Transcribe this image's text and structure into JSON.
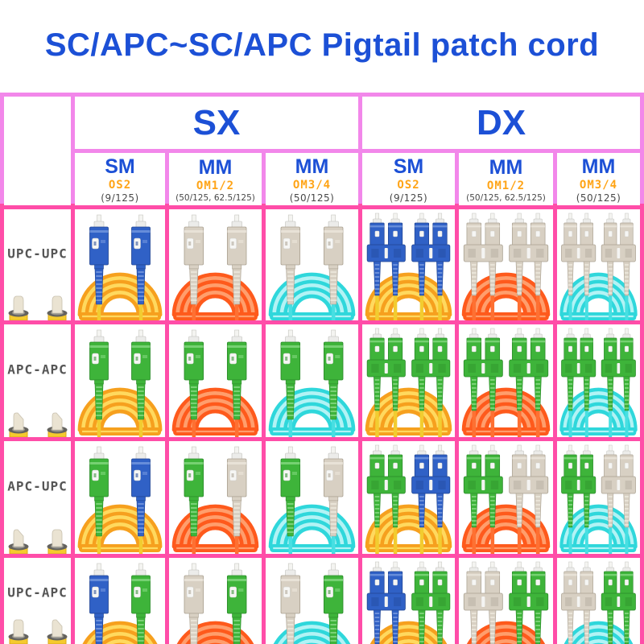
{
  "title": "SC/APC~SC/APC Pigtail patch cord",
  "table": {
    "groups": [
      {
        "label": "SX"
      },
      {
        "label": "DX"
      }
    ],
    "subcolumns": [
      {
        "group": "SX",
        "mode": "SM",
        "grade": "OS2",
        "spec": "(9/125)"
      },
      {
        "group": "SX",
        "mode": "MM",
        "grade": "OM1/2",
        "spec": "(50/125、62.5/125)"
      },
      {
        "group": "SX",
        "mode": "MM",
        "grade": "OM3/4",
        "spec": "(50/125)"
      },
      {
        "group": "DX",
        "mode": "SM",
        "grade": "OS2",
        "spec": "(9/125)"
      },
      {
        "group": "DX",
        "mode": "MM",
        "grade": "OM1/2",
        "spec": "(50/125、62.5/125)"
      },
      {
        "group": "DX",
        "mode": "MM",
        "grade": "OM3/4",
        "spec": "(50/125)"
      }
    ],
    "rows": [
      {
        "label": "UPC-UPC",
        "ferrule_tips": [
          "straight",
          "straight"
        ],
        "cells": [
          {
            "type": "simplex",
            "connectors": [
              "blue",
              "blue"
            ],
            "cable": "yellow"
          },
          {
            "type": "simplex",
            "connectors": [
              "beige",
              "beige"
            ],
            "cable": "orange"
          },
          {
            "type": "simplex",
            "connectors": [
              "beige",
              "beige"
            ],
            "cable": "aqua"
          },
          {
            "type": "duplex",
            "connectors": [
              "blue",
              "blue"
            ],
            "cable": "yellow"
          },
          {
            "type": "duplex",
            "connectors": [
              "beige",
              "beige"
            ],
            "cable": "orange"
          },
          {
            "type": "duplex",
            "connectors": [
              "beige",
              "beige"
            ],
            "cable": "aqua"
          }
        ]
      },
      {
        "label": "APC-APC",
        "ferrule_tips": [
          "angled",
          "angled"
        ],
        "cells": [
          {
            "type": "simplex",
            "connectors": [
              "green",
              "green"
            ],
            "cable": "yellow"
          },
          {
            "type": "simplex",
            "connectors": [
              "green",
              "green"
            ],
            "cable": "orange"
          },
          {
            "type": "simplex",
            "connectors": [
              "green",
              "green"
            ],
            "cable": "aqua"
          },
          {
            "type": "duplex",
            "connectors": [
              "green",
              "green"
            ],
            "cable": "yellow"
          },
          {
            "type": "duplex",
            "connectors": [
              "green",
              "green"
            ],
            "cable": "orange"
          },
          {
            "type": "duplex",
            "connectors": [
              "green",
              "green"
            ],
            "cable": "aqua"
          }
        ]
      },
      {
        "label": "APC-UPC",
        "ferrule_tips": [
          "angled",
          "straight"
        ],
        "cells": [
          {
            "type": "simplex",
            "connectors": [
              "green",
              "blue"
            ],
            "cable": "yellow"
          },
          {
            "type": "simplex",
            "connectors": [
              "green",
              "beige"
            ],
            "cable": "orange"
          },
          {
            "type": "simplex",
            "connectors": [
              "green",
              "beige"
            ],
            "cable": "aqua"
          },
          {
            "type": "duplex",
            "connectors": [
              "green",
              "blue"
            ],
            "cable": "yellow"
          },
          {
            "type": "duplex",
            "connectors": [
              "green",
              "beige"
            ],
            "cable": "orange"
          },
          {
            "type": "duplex",
            "connectors": [
              "green",
              "beige"
            ],
            "cable": "aqua"
          }
        ]
      },
      {
        "label": "UPC-APC",
        "ferrule_tips": [
          "straight",
          "angled"
        ],
        "cells": [
          {
            "type": "simplex",
            "connectors": [
              "blue",
              "green"
            ],
            "cable": "yellow"
          },
          {
            "type": "simplex",
            "connectors": [
              "beige",
              "green"
            ],
            "cable": "orange"
          },
          {
            "type": "simplex",
            "connectors": [
              "beige",
              "green"
            ],
            "cable": "aqua"
          },
          {
            "type": "duplex",
            "connectors": [
              "blue",
              "green"
            ],
            "cable": "yellow"
          },
          {
            "type": "duplex",
            "connectors": [
              "beige",
              "green"
            ],
            "cable": "orange"
          },
          {
            "type": "duplex",
            "connectors": [
              "beige",
              "green"
            ],
            "cable": "aqua"
          }
        ]
      }
    ]
  },
  "colors": {
    "title_blue": "#1c50d6",
    "accent_orange": "#ffa416",
    "spec_gray": "#474747",
    "row_label_gray": "#565656",
    "border_header_pink": "#f287ea",
    "border_body_pink": "#ff4da8",
    "connector": {
      "blue": {
        "main": "#3061c6",
        "dark": "#1f4492",
        "light": "#7e9fe2"
      },
      "green": {
        "main": "#3eb43a",
        "dark": "#2a8a28",
        "light": "#8edd8a"
      },
      "beige": {
        "main": "#d8d0c3",
        "dark": "#aaa191",
        "light": "#efeadf"
      }
    },
    "cable": {
      "yellow": {
        "main": "#f6a01e",
        "light": "#ffd95e",
        "tail": "#f2cc30"
      },
      "orange": {
        "main": "#fe5a1c",
        "light": "#ff9e6c",
        "tail": "#fe7032"
      },
      "aqua": {
        "main": "#2fd7db",
        "light": "#b2f3f5",
        "tail": "#47dfe2"
      }
    }
  }
}
